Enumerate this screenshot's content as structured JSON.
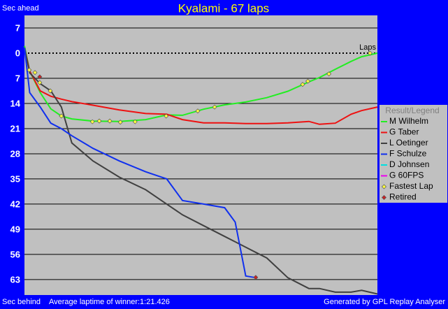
{
  "chart_data": {
    "type": "line",
    "title": "Kyalami - 67 laps",
    "y_label_top": "Sec ahead",
    "y_label_bottom": "Sec behind",
    "x_label": "Laps",
    "footer_left": "Average laptime of winner:1:21.426",
    "footer_right": "Generated by GPL Replay Analyser",
    "legend_title": "Result/Legend",
    "xlim": [
      0,
      67
    ],
    "ylim": [
      -10.5,
      67.3
    ],
    "yticks": [
      {
        "value": -7,
        "label": "7"
      },
      0,
      7,
      14,
      21,
      28,
      35,
      42,
      49,
      56,
      63
    ],
    "grid": true,
    "x": [
      0,
      1,
      3,
      5,
      7,
      9,
      13,
      18,
      23,
      27,
      30,
      34,
      38,
      40,
      42,
      44,
      46,
      50,
      54,
      56,
      59,
      62,
      64,
      67
    ],
    "series": [
      {
        "name": "M Wilhelm",
        "color": "#22ee22",
        "values": [
          -2,
          5,
          11,
          15.5,
          17.5,
          18.3,
          18.9,
          19,
          18.5,
          17.2,
          17.3,
          15.6,
          14.4,
          14,
          13.6,
          13,
          12.4,
          10.6,
          8,
          6.8,
          4.5,
          2.3,
          1,
          0
        ]
      },
      {
        "name": "G Taber",
        "color": "#ee1111",
        "values": [
          -1.5,
          5,
          10.5,
          12,
          12.8,
          13.5,
          14.5,
          15.8,
          16.8,
          17,
          18.5,
          19.4,
          19.4,
          19.5,
          19.6,
          19.6,
          19.6,
          19.4,
          19,
          19.8,
          19.5,
          17,
          16,
          15
        ]
      },
      {
        "name": "L Oetinger",
        "color": "#404040",
        "values": [
          -1.5,
          5.5,
          8.5,
          10.5,
          15,
          25,
          30,
          34.5,
          38,
          42,
          45,
          48,
          51,
          52.5,
          54,
          55.5,
          57,
          62.5,
          65.5,
          65.5,
          66.5,
          66.5,
          66,
          67
        ]
      },
      {
        "name": "F Schulze",
        "color": "#1030ee",
        "values": [
          -1.5,
          11,
          15,
          19.5,
          21,
          23,
          26.5,
          30,
          33,
          35,
          41,
          42,
          43,
          47,
          62,
          62.5,
          null,
          null,
          null,
          null,
          null,
          null,
          null,
          null
        ]
      },
      {
        "name": "D Johnsen",
        "color": "#00e0e0",
        "values": [
          null,
          null,
          null,
          null,
          null,
          null,
          null,
          null,
          null,
          null,
          null,
          null,
          null,
          null,
          null,
          null,
          null,
          null,
          null,
          null,
          null,
          null,
          null,
          null
        ]
      },
      {
        "name": "G 60FPS",
        "color": "#ee00ee",
        "values": [
          null,
          null,
          null,
          null,
          null,
          null,
          null,
          null,
          null,
          null,
          null,
          null,
          null,
          null,
          null,
          null,
          null,
          null,
          null,
          null,
          null,
          null,
          null,
          null
        ]
      }
    ],
    "markers": [
      {
        "name": "Fastest Lap",
        "color": "#ffff40",
        "x": [
          0.9,
          2,
          2.9,
          4.9,
          7,
          12.9,
          14.2,
          16.2,
          18.2,
          21,
          26.9,
          32.9,
          36.1,
          52.8,
          53.8,
          57.8,
          65.6
        ],
        "values": [
          4.7,
          5.4,
          8.2,
          10.5,
          17.5,
          19.1,
          18.9,
          18.9,
          19.2,
          19.1,
          17.5,
          16.1,
          15,
          8.7,
          7.8,
          5.8,
          0
        ]
      },
      {
        "name": "Retired",
        "color": "#cc2222",
        "x": [
          2.9,
          43.9
        ],
        "values": [
          6.6,
          62.4
        ]
      }
    ]
  }
}
